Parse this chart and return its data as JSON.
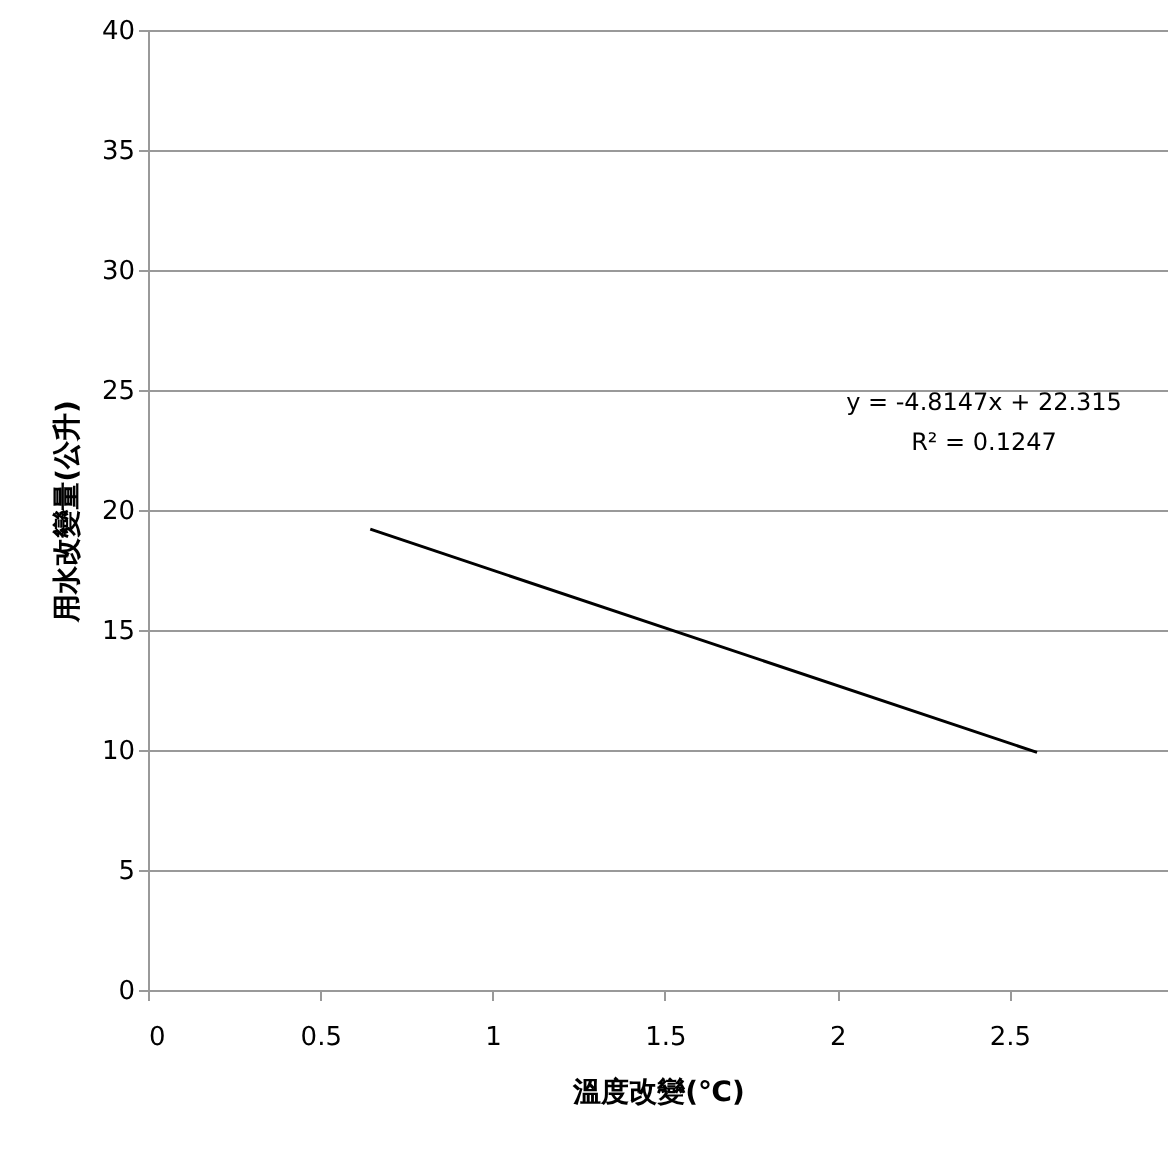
{
  "chart_data": {
    "type": "line",
    "xlabel": "溫度改變(℃)",
    "ylabel": "用水改變量(公升)",
    "series": [
      {
        "color": "#000000",
        "x": [
          0.645,
          2.58
        ],
        "values": [
          19.2,
          9.9
        ]
      }
    ],
    "xlim": [
      0,
      2.96
    ],
    "xticks": [
      0,
      0.5,
      1,
      1.5,
      2,
      2.5
    ],
    "ylim": [
      0,
      40
    ],
    "yticks": [
      0,
      5,
      10,
      15,
      20,
      25,
      30,
      35,
      40
    ],
    "grid": "y",
    "marker": "none",
    "line_style": "solid",
    "annotations": [
      "y = -4.8147x + 22.315",
      "R² = 0.1247"
    ]
  }
}
